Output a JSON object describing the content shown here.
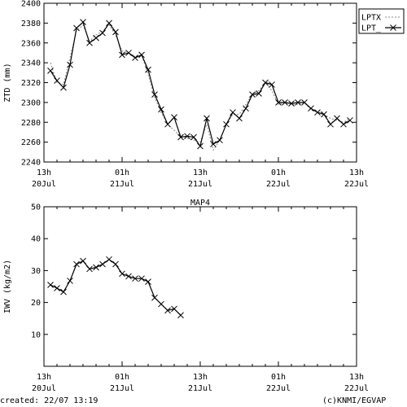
{
  "chart_data": [
    {
      "type": "line",
      "title": "",
      "ylabel": "ZTD (mm)",
      "xlabel": "",
      "ylim": [
        2240,
        2400
      ],
      "xlim": [
        0,
        48
      ],
      "yticks": [
        2240,
        2260,
        2280,
        2300,
        2320,
        2340,
        2360,
        2380,
        2400
      ],
      "xticks": [
        {
          "x": 0,
          "hour": "13h",
          "date": "20Jul"
        },
        {
          "x": 12,
          "hour": "01h",
          "date": "21Jul"
        },
        {
          "x": 24,
          "hour": "13h",
          "date": "21Jul"
        },
        {
          "x": 36,
          "hour": "01h",
          "date": "22Jul"
        },
        {
          "x": 48,
          "hour": "13h",
          "date": "22Jul"
        }
      ],
      "legend_position": "top-right",
      "series": [
        {
          "name": "LPTX",
          "style": "dotted",
          "color": "#888888",
          "x": [
            1,
            2,
            3,
            4,
            5,
            6,
            7,
            8,
            9,
            10,
            11,
            12,
            13,
            14,
            15,
            16,
            17,
            18,
            19,
            20,
            21,
            22,
            23,
            24,
            25,
            26,
            27,
            28,
            29,
            30,
            31,
            32,
            33,
            34,
            35,
            36,
            37,
            38,
            39,
            40,
            41,
            42,
            43,
            44,
            45,
            46,
            47
          ],
          "y": [
            2340,
            2320,
            2318,
            2345,
            2372,
            2378,
            2362,
            2368,
            2372,
            2378,
            2368,
            2352,
            2350,
            2346,
            2348,
            2328,
            2305,
            2290,
            2278,
            2272,
            2266,
            2264,
            2262,
            2260,
            2278,
            2252,
            2262,
            2278,
            2288,
            2288,
            2298,
            2308,
            2312,
            2320,
            2312,
            2298,
            2300,
            2298,
            2298,
            2300,
            2292,
            2292,
            2288,
            2284,
            2282,
            2280,
            2284
          ]
        },
        {
          "name": "LPT_",
          "style": "solid-x",
          "color": "#000000",
          "x": [
            1,
            2,
            3,
            4,
            5,
            6,
            7,
            8,
            9,
            10,
            11,
            12,
            13,
            14,
            15,
            16,
            17,
            18,
            19,
            20,
            21,
            22,
            23,
            24,
            25,
            26,
            27,
            28,
            29,
            30,
            31,
            32,
            33,
            34,
            35,
            36,
            37,
            38,
            39,
            40,
            41,
            42,
            43,
            44,
            45,
            46,
            47
          ],
          "y": [
            2332,
            2322,
            2315,
            2338,
            2375,
            2381,
            2360,
            2365,
            2370,
            2380,
            2371,
            2348,
            2350,
            2345,
            2348,
            2333,
            2308,
            2293,
            2278,
            2285,
            2265,
            2266,
            2265,
            2256,
            2284,
            2258,
            2262,
            2278,
            2290,
            2284,
            2294,
            2308,
            2309,
            2320,
            2318,
            2300,
            2300,
            2299,
            2300,
            2300,
            2294,
            2290,
            2288,
            2278,
            2284,
            2278,
            2282
          ]
        }
      ]
    },
    {
      "type": "line",
      "title": "MAP4",
      "ylabel": "IWV (kg/m2)",
      "xlabel": "",
      "ylim": [
        0,
        50
      ],
      "xlim": [
        0,
        48
      ],
      "yticks": [
        10,
        20,
        30,
        40,
        50
      ],
      "xticks": [
        {
          "x": 0,
          "hour": "13h",
          "date": "20Jul"
        },
        {
          "x": 12,
          "hour": "01h",
          "date": "21Jul"
        },
        {
          "x": 24,
          "hour": "13h",
          "date": "21Jul"
        },
        {
          "x": 36,
          "hour": "01h",
          "date": "22Jul"
        },
        {
          "x": 48,
          "hour": "13h",
          "date": "22Jul"
        }
      ],
      "series": [
        {
          "name": "",
          "style": "solid-x",
          "color": "#000000",
          "x": [
            1,
            2,
            3,
            4,
            5,
            6,
            7,
            8,
            9,
            10,
            11,
            12,
            13,
            14,
            15,
            16,
            17,
            18,
            19,
            20,
            21
          ],
          "y": [
            25.5,
            24.5,
            23.3,
            26.8,
            32.0,
            33.0,
            30.5,
            31.0,
            32.0,
            33.5,
            32.0,
            29.0,
            28.2,
            27.5,
            27.5,
            26.5,
            21.5,
            19.5,
            17.5,
            18.0,
            16.0
          ]
        }
      ]
    }
  ],
  "footer": {
    "created": "created: 22/07 13:19",
    "credit": "(c)KNMI/EGVAP"
  }
}
